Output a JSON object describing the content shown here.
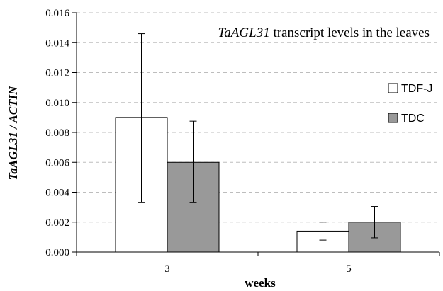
{
  "chart_data": {
    "type": "bar",
    "title_italic": "TaAGL31",
    "title_rest": " transcript levels in the leaves",
    "xlabel": "weeks",
    "ylabel": "TaAGL31 / ACTIN",
    "categories": [
      "3",
      "5"
    ],
    "ylim": [
      0,
      0.016
    ],
    "yticks": [
      "0.000",
      "0.002",
      "0.004",
      "0.006",
      "0.008",
      "0.010",
      "0.012",
      "0.014",
      "0.016"
    ],
    "grid": true,
    "legend_position": "right",
    "series": [
      {
        "name": "TDF-J",
        "color": "#ffffff",
        "values": [
          0.009,
          0.0014
        ],
        "error_low": [
          0.0033,
          0.0008
        ],
        "error_high": [
          0.0146,
          0.002
        ]
      },
      {
        "name": "TDC",
        "color": "#999999",
        "values": [
          0.006,
          0.002
        ],
        "error_low": [
          0.0033,
          0.00095
        ],
        "error_high": [
          0.00875,
          0.00305
        ]
      }
    ]
  }
}
